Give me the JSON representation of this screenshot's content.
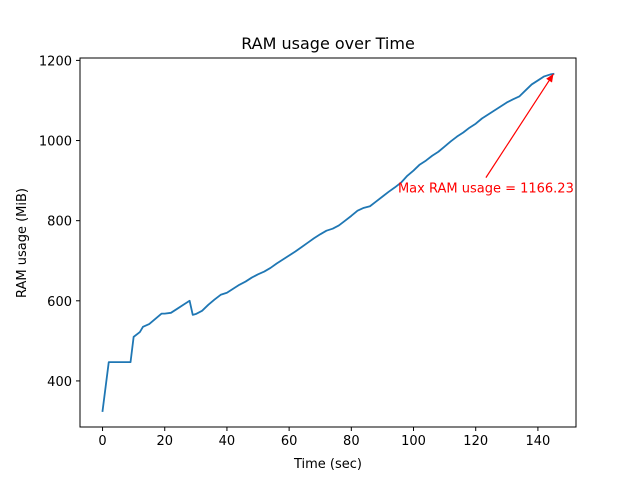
{
  "chart_data": {
    "type": "line",
    "title": "RAM usage over Time",
    "xlabel": "Time (sec)",
    "ylabel": "RAM usage (MiB)",
    "xlim": [
      -7.25,
      152.25
    ],
    "ylim": [
      285,
      1206
    ],
    "xticks": [
      0,
      20,
      40,
      60,
      80,
      100,
      120,
      140
    ],
    "yticks": [
      400,
      600,
      800,
      1000,
      1200
    ],
    "grid": false,
    "series": [
      {
        "color": "#1f77b4",
        "x": [
          0,
          2,
          8,
          9,
          10,
          12,
          13,
          15,
          17,
          19,
          20,
          22,
          24,
          26,
          28,
          29,
          30,
          32,
          34,
          36,
          38,
          40,
          42,
          44,
          46,
          48,
          50,
          52,
          54,
          56,
          58,
          60,
          62,
          64,
          66,
          68,
          70,
          72,
          74,
          76,
          78,
          80,
          82,
          84,
          86,
          88,
          90,
          92,
          94,
          96,
          98,
          100,
          102,
          104,
          106,
          108,
          110,
          112,
          114,
          116,
          118,
          120,
          122,
          124,
          126,
          128,
          130,
          132,
          134,
          136,
          138,
          140,
          142,
          144,
          145
        ],
        "y": [
          325,
          447,
          447,
          447,
          510,
          522,
          535,
          542,
          555,
          568,
          568,
          570,
          580,
          590,
          600,
          565,
          567,
          575,
          590,
          603,
          615,
          620,
          630,
          640,
          648,
          658,
          666,
          673,
          682,
          693,
          703,
          713,
          723,
          734,
          745,
          756,
          766,
          775,
          780,
          788,
          800,
          812,
          825,
          832,
          836,
          848,
          860,
          872,
          883,
          895,
          912,
          925,
          940,
          950,
          962,
          972,
          985,
          998,
          1010,
          1020,
          1032,
          1042,
          1055,
          1065,
          1075,
          1085,
          1095,
          1103,
          1110,
          1125,
          1140,
          1150,
          1160,
          1165,
          1166.23
        ]
      }
    ],
    "annotation": {
      "text": "Max RAM usage = 1166.23",
      "color": "#ff0000",
      "point": [
        145,
        1166.23
      ],
      "text_position": [
        95,
        870
      ]
    }
  }
}
